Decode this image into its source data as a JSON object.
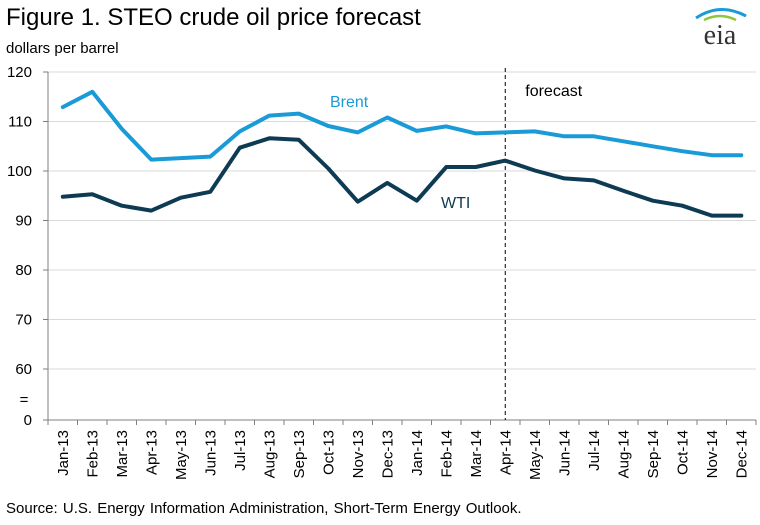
{
  "title": "Figure 1. STEO crude oil price forecast",
  "unit_label": "dollars per barrel",
  "source": "Source: U.S. Energy Information Administration, Short-Term Energy Outlook.",
  "logo_text": "eia",
  "colors": {
    "brent": "#1a9bd7",
    "wti": "#0d3b54",
    "axis": "#7f7f7f",
    "grid": "#d9d9d9"
  },
  "chart_data": {
    "type": "line",
    "categories": [
      "Jan-13",
      "Feb-13",
      "Mar-13",
      "Apr-13",
      "May-13",
      "Jun-13",
      "Jul-13",
      "Aug-13",
      "Sep-13",
      "Oct-13",
      "Nov-13",
      "Dec-13",
      "Jan-14",
      "Feb-14",
      "Mar-14",
      "Apr-14",
      "May-14",
      "Jun-14",
      "Jul-14",
      "Aug-14",
      "Sep-14",
      "Oct-14",
      "Nov-14",
      "Dec-14"
    ],
    "series": [
      {
        "name": "Brent",
        "values": [
          112.9,
          116.0,
          108.5,
          102.3,
          102.6,
          102.9,
          108.0,
          111.2,
          111.6,
          109.1,
          107.8,
          110.8,
          108.1,
          109.0,
          107.6,
          107.8,
          108.0,
          107.0,
          107.0,
          106.0,
          105.0,
          104.0,
          103.2,
          103.2
        ]
      },
      {
        "name": "WTI",
        "values": [
          94.8,
          95.3,
          93.0,
          92.0,
          94.6,
          95.8,
          104.7,
          106.6,
          106.3,
          100.5,
          93.8,
          97.6,
          94.0,
          100.8,
          100.8,
          102.1,
          100.1,
          98.5,
          98.1,
          96.0,
          94.0,
          93.0,
          91.0,
          91.0
        ]
      }
    ],
    "forecast_label": "forecast",
    "forecast_start_index": 15.5,
    "ylim": [
      0,
      120
    ],
    "yticks": [
      0,
      60,
      70,
      80,
      90,
      100,
      110,
      120
    ],
    "axis_break_marker": "=",
    "grid": true,
    "xlabel": "",
    "ylabel": ""
  }
}
